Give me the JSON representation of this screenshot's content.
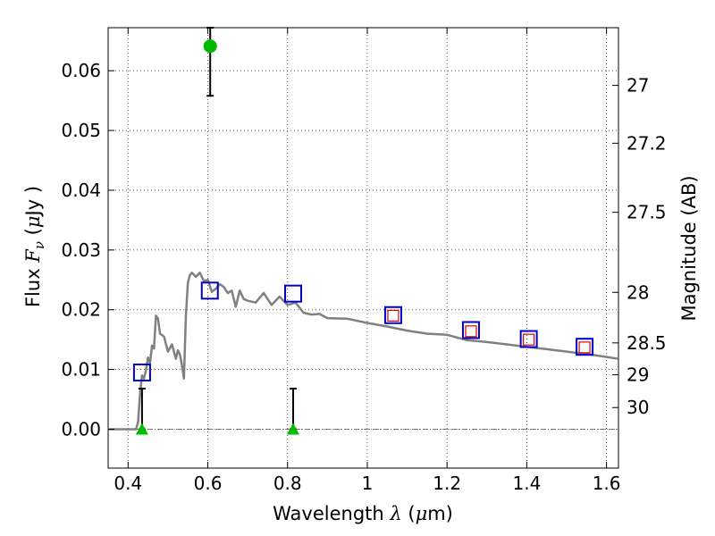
{
  "chart_data": {
    "type": "scatter",
    "xlabel": {
      "pre": "Wavelength  ",
      "sym": "λ",
      "post": " (",
      "mu": "μ",
      "unit": "m)"
    },
    "ylabel": {
      "pre": "Flux  ",
      "sym": "F",
      "sub": "ν",
      "post": "  (",
      "mu": "μ",
      "unit": "Jy )"
    },
    "y2label": "Magnitude (AB)",
    "xlim": [
      0.35,
      1.63
    ],
    "ylim": [
      -0.0065,
      0.0672
    ],
    "grid": true,
    "x_ticks": [
      {
        "v": 0.4,
        "label": "0.4"
      },
      {
        "v": 0.6,
        "label": "0.6"
      },
      {
        "v": 0.8,
        "label": "0.8"
      },
      {
        "v": 1.0,
        "label": "1"
      },
      {
        "v": 1.2,
        "label": "1.2"
      },
      {
        "v": 1.4,
        "label": "1.4"
      },
      {
        "v": 1.6,
        "label": "1.6"
      }
    ],
    "y_ticks": [
      {
        "v": 0.0,
        "label": "0.00"
      },
      {
        "v": 0.01,
        "label": "0.01"
      },
      {
        "v": 0.02,
        "label": "0.02"
      },
      {
        "v": 0.03,
        "label": "0.03"
      },
      {
        "v": 0.04,
        "label": "0.04"
      },
      {
        "v": 0.05,
        "label": "0.05"
      },
      {
        "v": 0.06,
        "label": "0.06"
      }
    ],
    "y2_ticks": [
      {
        "mag": 27,
        "label": "27"
      },
      {
        "mag": 27.2,
        "label": "27.2"
      },
      {
        "mag": 27.5,
        "label": "27.5"
      },
      {
        "mag": 28,
        "label": "28"
      },
      {
        "mag": 28.5,
        "label": "28.5"
      },
      {
        "mag": 29,
        "label": "29"
      },
      {
        "mag": 30,
        "label": "30"
      }
    ],
    "model_sed": {
      "color": "#808080",
      "x": [
        0.35,
        0.42,
        0.425,
        0.43,
        0.435,
        0.44,
        0.445,
        0.45,
        0.455,
        0.46,
        0.465,
        0.47,
        0.475,
        0.48,
        0.49,
        0.5,
        0.51,
        0.52,
        0.525,
        0.53,
        0.535,
        0.54,
        0.545,
        0.55,
        0.555,
        0.56,
        0.57,
        0.58,
        0.59,
        0.6,
        0.61,
        0.62,
        0.63,
        0.64,
        0.65,
        0.66,
        0.67,
        0.68,
        0.69,
        0.7,
        0.72,
        0.74,
        0.76,
        0.78,
        0.8,
        0.82,
        0.84,
        0.86,
        0.88,
        0.9,
        0.95,
        1.0,
        1.05,
        1.1,
        1.15,
        1.2,
        1.25,
        1.3,
        1.35,
        1.4,
        1.45,
        1.5,
        1.55,
        1.6,
        1.63
      ],
      "y": [
        0.0,
        0.0,
        0.0012,
        0.006,
        0.009,
        0.0085,
        0.01,
        0.012,
        0.011,
        0.014,
        0.0135,
        0.019,
        0.0185,
        0.016,
        0.0155,
        0.013,
        0.0142,
        0.0118,
        0.0132,
        0.0125,
        0.0108,
        0.0085,
        0.019,
        0.0245,
        0.0258,
        0.0262,
        0.0255,
        0.0262,
        0.0248,
        0.025,
        0.023,
        0.0235,
        0.0243,
        0.0238,
        0.0228,
        0.0232,
        0.0205,
        0.0232,
        0.0218,
        0.0215,
        0.0212,
        0.0228,
        0.0208,
        0.0222,
        0.0208,
        0.0212,
        0.0195,
        0.0192,
        0.0193,
        0.0186,
        0.0185,
        0.0178,
        0.0172,
        0.0165,
        0.016,
        0.0158,
        0.0149,
        0.0146,
        0.0142,
        0.0138,
        0.0134,
        0.013,
        0.0126,
        0.0121,
        0.0118
      ]
    },
    "obs_squares": {
      "color": "#0000cc",
      "points": [
        {
          "x": 0.435,
          "y": 0.0095
        },
        {
          "x": 0.605,
          "y": 0.0232
        },
        {
          "x": 0.814,
          "y": 0.0227
        },
        {
          "x": 1.065,
          "y": 0.0191
        },
        {
          "x": 1.26,
          "y": 0.0166
        },
        {
          "x": 1.405,
          "y": 0.0151
        },
        {
          "x": 1.545,
          "y": 0.0138
        }
      ]
    },
    "model_squares": {
      "color": "#dd0000",
      "points": [
        {
          "x": 1.065,
          "y": 0.019
        },
        {
          "x": 1.26,
          "y": 0.0164
        },
        {
          "x": 1.405,
          "y": 0.015
        },
        {
          "x": 1.545,
          "y": 0.0137
        }
      ]
    },
    "detection": {
      "color": "#00bb00",
      "point": {
        "x": 0.606,
        "y": 0.0641,
        "err_low": 0.0558,
        "err_high": 0.0672
      }
    },
    "upper_limits": {
      "color": "#00bb00",
      "points": [
        {
          "x": 0.435,
          "y": 0.0,
          "err_high": 0.0068
        },
        {
          "x": 0.814,
          "y": 0.0,
          "err_high": 0.0068
        }
      ]
    }
  }
}
